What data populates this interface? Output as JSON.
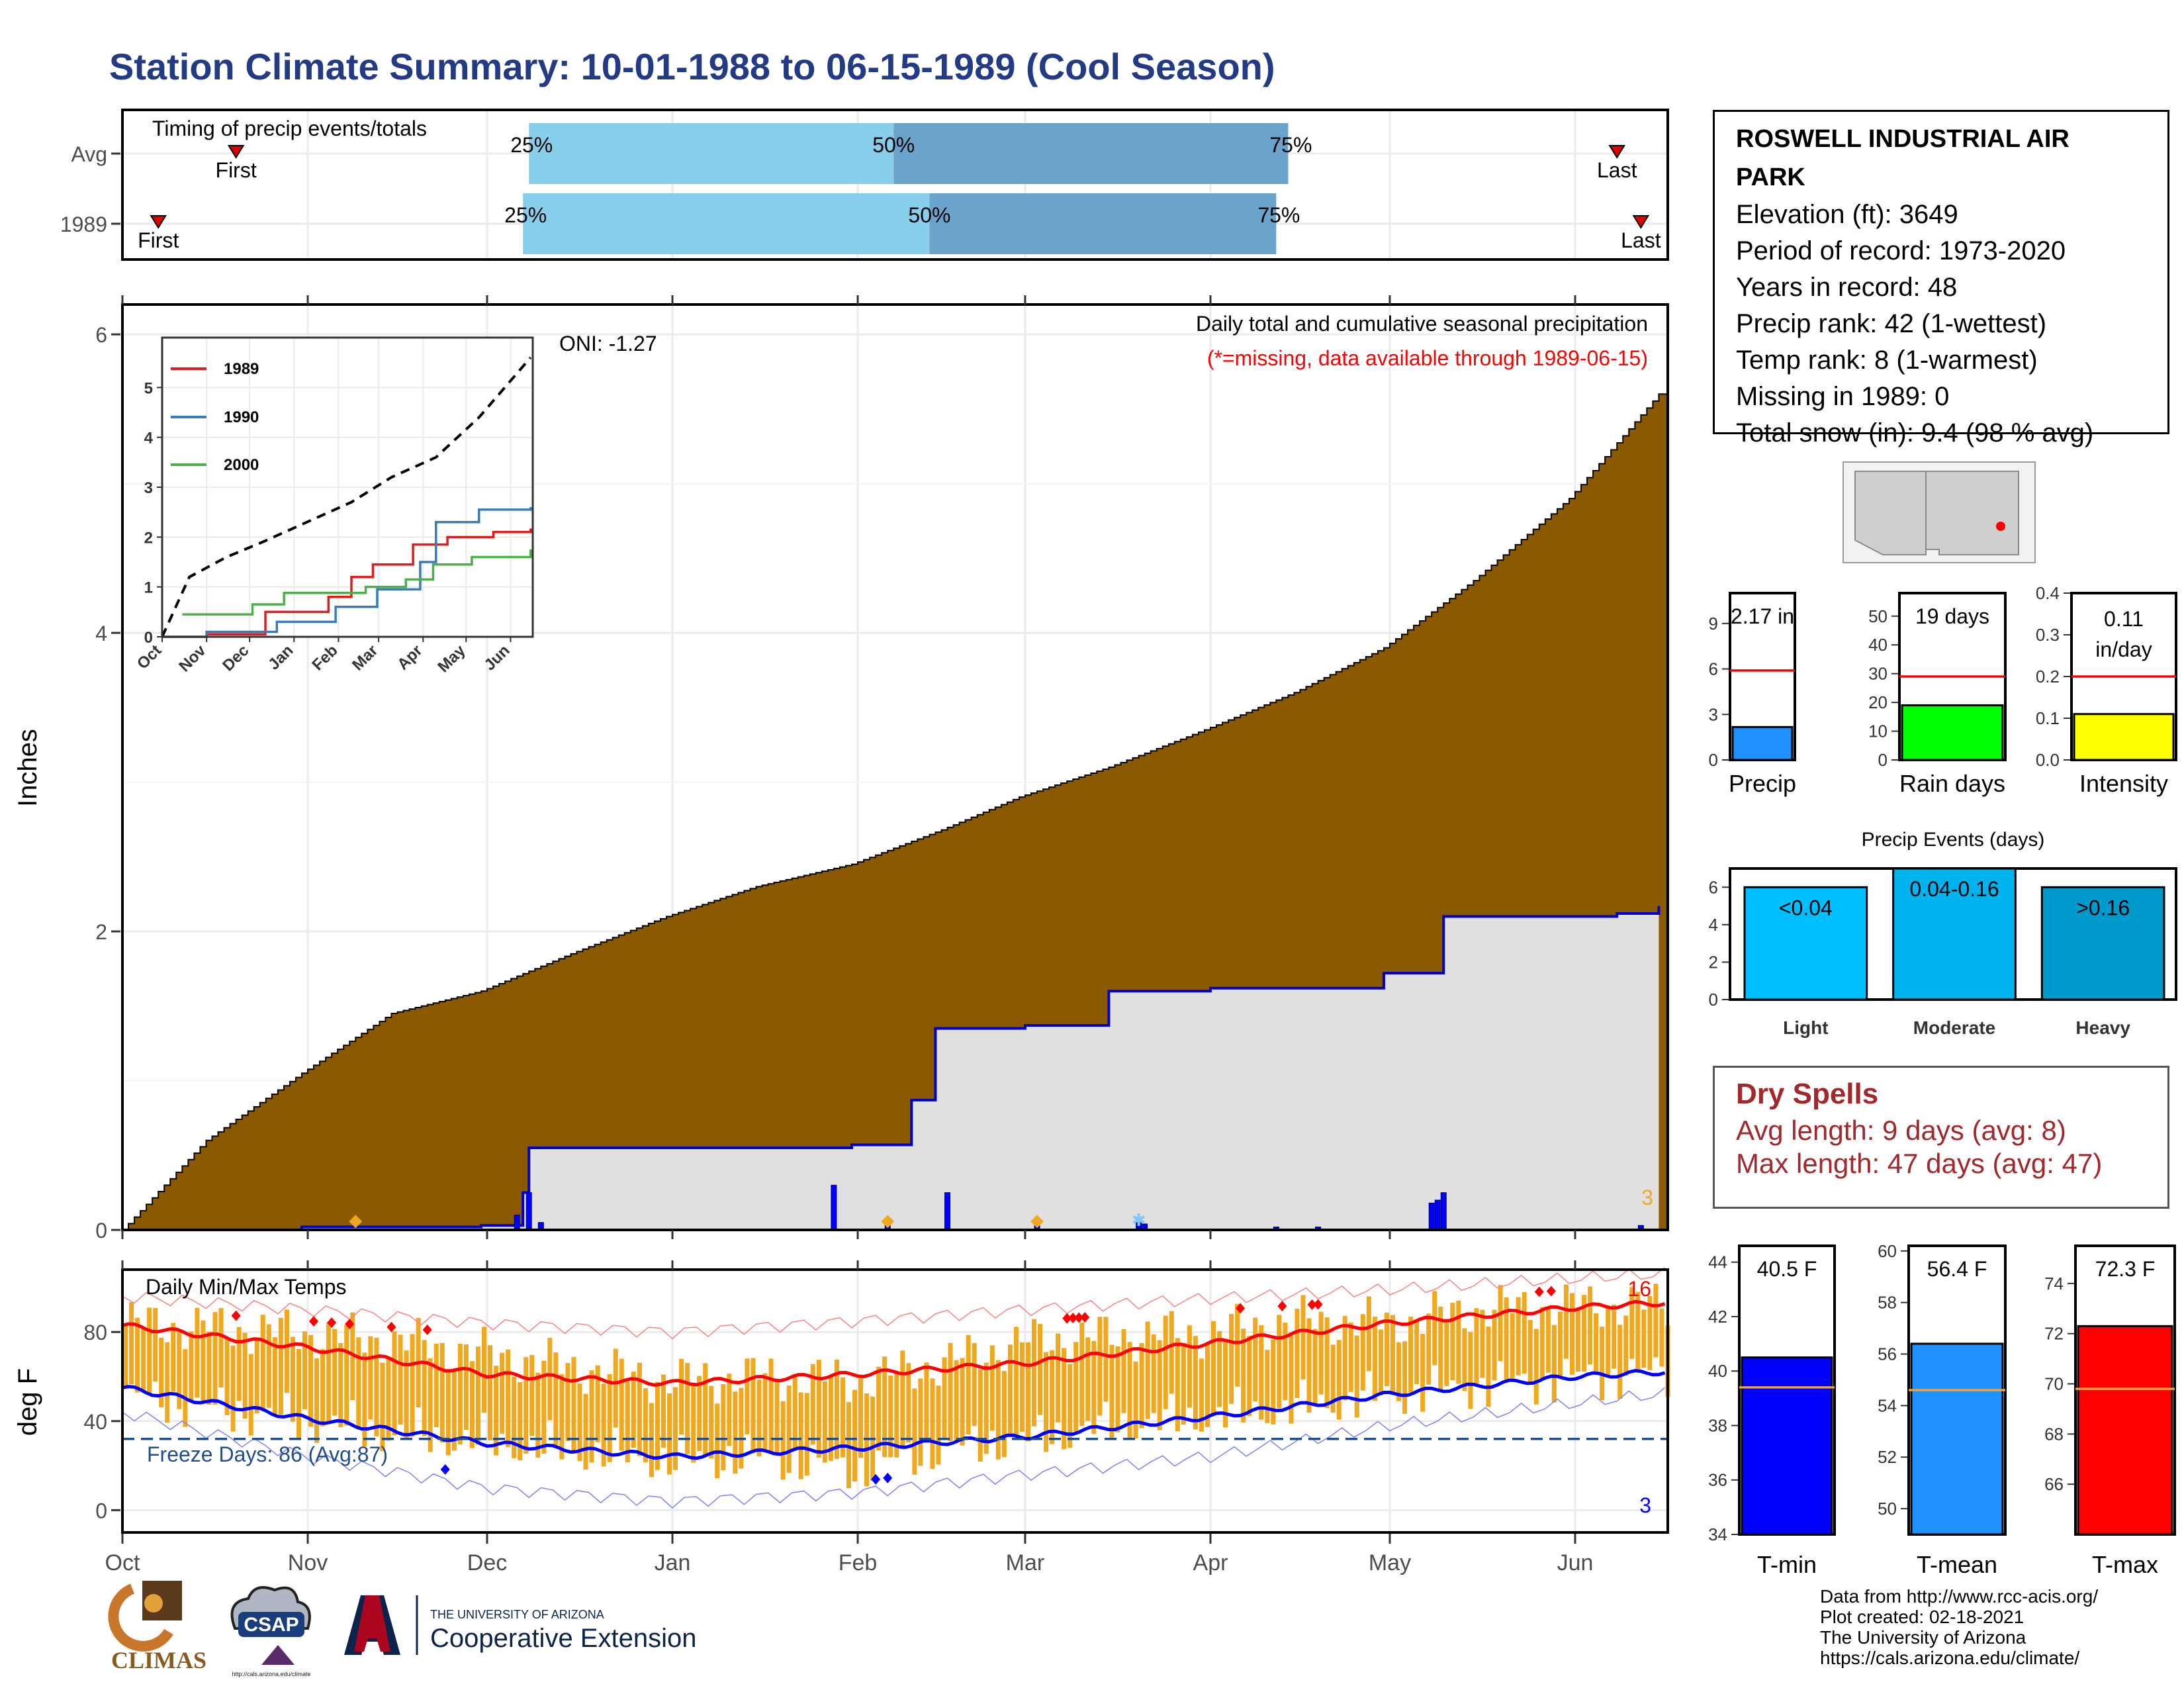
{
  "title": "Station Climate Summary: 10-01-1988 to 06-15-1989 (Cool Season)",
  "station": {
    "name": "ROSWELL INDUSTRIAL AIR PARK",
    "lines": [
      "Elevation (ft): 3649",
      "Period of record: 1973-2020",
      "Years in record: 48",
      "Precip rank: 42 (1-wettest)",
      "Temp rank: 8 (1-warmest)",
      "Missing in 1989: 0",
      "Total snow (in): 9.4 (98 % avg)"
    ]
  },
  "dry_spells": {
    "title": "Dry Spells",
    "avg_length": "Avg length: 9 days (avg: 8)",
    "max_length": "Max length: 47 days (avg: 47)"
  },
  "credits": [
    "Data from http://www.rcc-acis.org/",
    "Plot created: 02-18-2021",
    "The University of Arizona",
    "https://cals.arizona.edu/climate/"
  ],
  "logos": {
    "climas": "CLIMAS",
    "csap": "CSAP",
    "csap_url": "http://cals.arizona.edu/climate",
    "ua_small": "THE UNIVERSITY OF ARIZONA",
    "ua_big": "Cooperative Extension"
  },
  "colors": {
    "title": "#233a84",
    "cumulative_fill": "#8b5a00",
    "avg_fill": "#e0e0e0",
    "avg_line": "#0000cc",
    "daily_bar": "#0000ff",
    "quartile_light": "#87ceeb",
    "quartile_dark": "#6aa3cc",
    "temp_bar": "#f0a91f",
    "tmax_line": "#ff0000",
    "tmin_line": "#0000ff",
    "dry_spell": "#a3282c"
  },
  "chart_data": [
    {
      "type": "bar",
      "title": "Timing of precip events/totals",
      "rows": [
        {
          "label": "Avg",
          "first": "First",
          "last": "Last",
          "first_date": "1988-10-20",
          "last_date": "1989-06-08",
          "q25_date": "1988-12-08",
          "q50_date": "1989-02-07",
          "q75_date": "1989-04-14",
          "q25": "25%",
          "q50": "50%",
          "q75": "75%"
        },
        {
          "label": "1989",
          "first": "First",
          "last": "Last",
          "first_date": "1988-10-07",
          "last_date": "1989-06-12",
          "q25_date": "1988-12-07",
          "q50_date": "1989-02-13",
          "q75_date": "1989-04-12",
          "q25": "25%",
          "q50": "50%",
          "q75": "75%"
        }
      ]
    },
    {
      "type": "area",
      "title": "Daily total and cumulative seasonal precipitation",
      "subtitle": "(*=missing, data available through 1989-06-15)",
      "ylabel": "Inches",
      "ylim": [
        0,
        6.2
      ],
      "yticks": [
        0,
        2,
        4,
        6
      ],
      "oni": "ONI: -1.27",
      "corner_count": "3",
      "cumulative_1988_89": {
        "x": [
          "1988-10-01",
          "1988-10-15",
          "1988-10-31",
          "1988-11-15",
          "1988-11-30",
          "1988-12-15",
          "1988-12-31",
          "1989-01-15",
          "1989-01-31",
          "1989-02-15",
          "1989-02-28",
          "1989-03-15",
          "1989-03-31",
          "1989-04-15",
          "1989-04-30",
          "1989-05-15",
          "1989-05-31",
          "1989-06-15"
        ],
        "y": [
          0.0,
          0.6,
          1.05,
          1.45,
          1.6,
          1.85,
          2.1,
          2.3,
          2.45,
          2.68,
          2.9,
          3.1,
          3.35,
          3.6,
          3.9,
          4.35,
          4.9,
          5.6
        ]
      },
      "average_cumulative": {
        "x": [
          "1988-10-01",
          "1988-10-31",
          "1988-11-30",
          "1988-12-06",
          "1988-12-07",
          "1988-12-08",
          "1989-01-31",
          "1989-02-10",
          "1989-02-14",
          "1989-03-01",
          "1989-03-15",
          "1989-04-01",
          "1989-04-30",
          "1989-05-01",
          "1989-05-10",
          "1989-06-08",
          "1989-06-15"
        ],
        "y": [
          0.0,
          0.02,
          0.03,
          0.03,
          0.25,
          0.55,
          0.57,
          0.87,
          1.35,
          1.37,
          1.6,
          1.62,
          1.72,
          1.72,
          2.1,
          2.12,
          2.17
        ]
      },
      "daily_precip": {
        "x": [
          "1988-12-06",
          "1988-12-08",
          "1988-12-10",
          "1989-01-28",
          "1989-02-06",
          "1989-02-16",
          "1989-03-03",
          "1989-03-20",
          "1989-03-21",
          "1989-04-12",
          "1989-04-19",
          "1989-05-08",
          "1989-05-09",
          "1989-05-10",
          "1989-06-12"
        ],
        "y": [
          0.1,
          0.25,
          0.05,
          0.3,
          0.05,
          0.25,
          0.04,
          0.05,
          0.04,
          0.02,
          0.02,
          0.18,
          0.2,
          0.25,
          0.03
        ]
      },
      "markers": [
        {
          "date": "1988-11-09",
          "symbol": "◆"
        },
        {
          "date": "1989-02-06",
          "symbol": "◆"
        },
        {
          "date": "1989-03-03",
          "symbol": "◆"
        },
        {
          "date": "1989-03-20",
          "symbol": "✱"
        }
      ]
    },
    {
      "type": "line",
      "title": "",
      "xticks": [
        "Oct",
        "Nov",
        "Dec",
        "Jan",
        "Feb",
        "Mar",
        "Apr",
        "May",
        "Jun"
      ],
      "ylim": [
        0,
        6
      ],
      "yticks": [
        0,
        1,
        2,
        3,
        4,
        5
      ],
      "series": [
        {
          "name": "1989",
          "color": "#e41a1c",
          "x": [
            "1988-10-01",
            "1988-11-01",
            "1988-12-12",
            "1989-01-25",
            "1989-02-10",
            "1989-02-25",
            "1989-03-25",
            "1989-04-18",
            "1989-05-20",
            "1989-06-15"
          ],
          "y": [
            0.0,
            0.05,
            0.5,
            0.8,
            1.2,
            1.45,
            1.85,
            2.0,
            2.1,
            2.17
          ]
        },
        {
          "name": "1990",
          "color": "#377eb8",
          "x": [
            "1988-10-01",
            "1988-11-01",
            "1988-12-20",
            "1989-01-30",
            "1989-02-28",
            "1989-03-30",
            "1989-04-10",
            "1989-05-10",
            "1989-06-15"
          ],
          "y": [
            0.0,
            0.1,
            0.3,
            0.6,
            0.95,
            1.5,
            2.3,
            2.55,
            2.6
          ]
        },
        {
          "name": "2000",
          "color": "#4daf4a",
          "x": [
            "1988-10-15",
            "1988-12-03",
            "1988-12-25",
            "1989-02-20",
            "1989-03-20",
            "1989-04-08",
            "1989-05-05",
            "1989-06-15"
          ],
          "y": [
            0.45,
            0.65,
            0.88,
            1.0,
            1.15,
            1.45,
            1.6,
            1.75
          ]
        },
        {
          "name": "Average",
          "color": "#000000",
          "dashed": true,
          "x": [
            "1988-10-01",
            "1988-10-20",
            "1988-11-15",
            "1988-12-10",
            "1989-01-10",
            "1989-02-10",
            "1989-03-10",
            "1989-04-10",
            "1989-05-10",
            "1989-06-15"
          ],
          "y": [
            0.0,
            1.2,
            1.6,
            1.9,
            2.3,
            2.7,
            3.2,
            3.6,
            4.4,
            5.6
          ]
        }
      ]
    },
    {
      "type": "bar",
      "title": "Daily Min/Max Temps",
      "ylabel": "deg F",
      "ylim": [
        -10,
        108
      ],
      "yticks": [
        0,
        40,
        80
      ],
      "xticks": [
        "Oct",
        "Nov",
        "Dec",
        "Jan",
        "Feb",
        "Mar",
        "Apr",
        "May",
        "Jun"
      ],
      "freeze_days": "Freeze Days: 86 (Avg:87)",
      "record_high_count": "16",
      "record_low_count": "3",
      "avg_tmax": {
        "x": [
          "1988-10-01",
          "1988-11-01",
          "1988-12-01",
          "1989-01-01",
          "1989-02-01",
          "1989-03-01",
          "1989-04-01",
          "1989-05-01",
          "1989-06-01",
          "1989-06-15"
        ],
        "y": [
          83,
          73,
          61,
          57,
          61,
          66,
          75,
          84,
          91,
          93
        ]
      },
      "avg_tmin": {
        "x": [
          "1988-10-01",
          "1988-11-01",
          "1988-12-01",
          "1989-01-01",
          "1989-02-01",
          "1989-03-01",
          "1989-04-01",
          "1989-05-01",
          "1989-06-01",
          "1989-06-15"
        ],
        "y": [
          55,
          41,
          30,
          24,
          28,
          33,
          42,
          52,
          60,
          62
        ]
      },
      "record_high_trace": {
        "x": [
          "1988-10-01",
          "1988-11-01",
          "1988-12-01",
          "1989-01-01",
          "1989-02-01",
          "1989-03-01",
          "1989-04-01",
          "1989-05-01",
          "1989-06-01",
          "1989-06-15"
        ],
        "y": [
          96,
          90,
          84,
          80,
          85,
          90,
          95,
          99,
          104,
          106
        ]
      },
      "record_low_trace": {
        "x": [
          "1988-10-01",
          "1988-11-01",
          "1988-12-01",
          "1989-01-01",
          "1989-02-01",
          "1989-03-01",
          "1989-04-01",
          "1989-05-01",
          "1989-06-01",
          "1989-06-15"
        ],
        "y": [
          44,
          24,
          10,
          4,
          8,
          16,
          24,
          38,
          48,
          52
        ]
      },
      "obs_tmax": {
        "x": [
          "1988-10-01",
          "1988-10-15",
          "1988-11-01",
          "1988-11-15",
          "1988-12-01",
          "1988-12-15",
          "1989-01-01",
          "1989-01-15",
          "1989-02-01",
          "1989-02-15",
          "1989-03-01",
          "1989-03-15",
          "1989-04-01",
          "1989-04-15",
          "1989-05-01",
          "1989-05-15",
          "1989-06-01",
          "1989-06-15"
        ],
        "y": [
          84,
          82,
          79,
          76,
          70,
          64,
          58,
          60,
          58,
          66,
          76,
          78,
          80,
          85,
          84,
          90,
          92,
          92
        ]
      },
      "obs_tmin": {
        "x": [
          "1988-10-01",
          "1988-10-15",
          "1988-11-01",
          "1988-11-15",
          "1988-12-01",
          "1988-12-15",
          "1989-01-01",
          "1989-01-15",
          "1989-02-01",
          "1989-02-15",
          "1989-03-01",
          "1989-03-15",
          "1989-04-01",
          "1989-04-15",
          "1989-05-01",
          "1989-05-15",
          "1989-06-01",
          "1989-06-15"
        ],
        "y": [
          52,
          46,
          40,
          34,
          30,
          26,
          22,
          24,
          18,
          28,
          32,
          38,
          42,
          46,
          52,
          56,
          60,
          62
        ]
      },
      "record_marks_high": [
        "1988-10-20",
        "1988-11-02",
        "1988-11-05",
        "1988-11-08",
        "1988-11-15",
        "1988-11-21",
        "1989-03-08",
        "1989-03-09",
        "1989-03-10",
        "1989-03-11",
        "1989-04-06",
        "1989-04-13",
        "1989-04-18",
        "1989-04-19",
        "1989-05-26",
        "1989-05-28"
      ],
      "record_marks_low": [
        "1988-11-24",
        "1989-02-04",
        "1989-02-06"
      ]
    },
    {
      "type": "bar",
      "title": "",
      "panels": [
        {
          "label": "Precip",
          "value": 2.17,
          "value_text": "2.17 in",
          "avg": 5.9,
          "ylim": [
            0,
            11
          ],
          "yticks": [
            0,
            3,
            6,
            9
          ],
          "color": "#1e90ff"
        },
        {
          "label": "Rain days",
          "value": 19,
          "value_text": "19 days",
          "avg": 29,
          "ylim": [
            0,
            58
          ],
          "yticks": [
            0,
            10,
            20,
            30,
            40,
            50
          ],
          "color": "#00ff00"
        },
        {
          "label": "Intensity",
          "value": 0.11,
          "value_text": "0.11 in/day",
          "avg": 0.2,
          "ylim": [
            0,
            0.4
          ],
          "yticks": [
            0.0,
            0.1,
            0.2,
            0.3,
            0.4
          ],
          "color": "#ffff00"
        }
      ]
    },
    {
      "type": "bar",
      "title": "Precip Events (days)",
      "categories": [
        "Light",
        "Moderate",
        "Heavy"
      ],
      "values": [
        6,
        7,
        6
      ],
      "labels": [
        "<0.04",
        "0.04-0.16",
        ">0.16"
      ],
      "ylim": [
        0,
        7
      ],
      "yticks": [
        0,
        2,
        4,
        6
      ],
      "colors": [
        "#00bfff",
        "#00b2ee",
        "#009acd"
      ]
    },
    {
      "type": "bar",
      "title": "",
      "panels": [
        {
          "label": "T-min",
          "value": 40.5,
          "value_text": "40.5 F",
          "avg": 39.4,
          "ylim": [
            34,
            44.6
          ],
          "yticks": [
            34,
            36,
            38,
            40,
            42,
            44
          ],
          "color": "#0000ff"
        },
        {
          "label": "T-mean",
          "value": 56.4,
          "value_text": "56.4 F",
          "avg": 54.6,
          "ylim": [
            49,
            60.2
          ],
          "yticks": [
            50,
            52,
            54,
            56,
            58,
            60
          ],
          "color": "#1e90ff"
        },
        {
          "label": "T-max",
          "value": 72.3,
          "value_text": "72.3 F",
          "avg": 69.8,
          "ylim": [
            64,
            75.5
          ],
          "yticks": [
            66,
            68,
            70,
            72,
            74
          ],
          "color": "#ff0000"
        }
      ]
    },
    {
      "type": "map",
      "title": "",
      "marker_color": "#ff0000"
    }
  ]
}
